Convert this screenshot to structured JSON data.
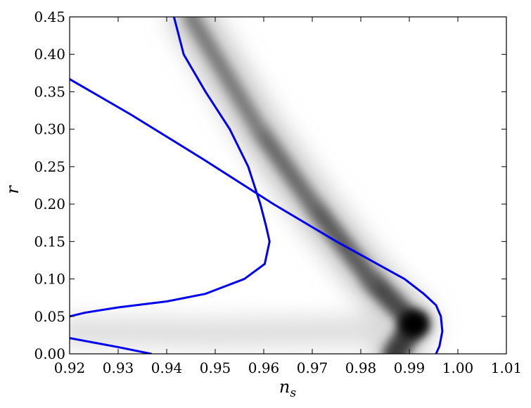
{
  "chart_data": {
    "type": "heatmap",
    "title": "",
    "xlabel": "n",
    "xlabel_subscript": "s",
    "ylabel": "r",
    "xlim": [
      0.92,
      1.01
    ],
    "ylim": [
      0.0,
      0.45
    ],
    "x_ticks": [
      "0.92",
      "0.93",
      "0.94",
      "0.95",
      "0.96",
      "0.97",
      "0.98",
      "0.99",
      "1.00",
      "1.01"
    ],
    "y_ticks": [
      "0.00",
      "0.05",
      "0.10",
      "0.15",
      "0.20",
      "0.25",
      "0.30",
      "0.35",
      "0.40",
      "0.45"
    ],
    "grid": false,
    "colormap": "grayscale, darker = higher density",
    "density_ridge": {
      "r": [
        0.0,
        0.04,
        0.1,
        0.2,
        0.3,
        0.45
      ],
      "ns": [
        0.987,
        0.991,
        0.982,
        0.97,
        0.959,
        0.945
      ]
    },
    "peak": {
      "ns": 0.991,
      "r": 0.04
    },
    "contours": [
      {
        "name": "contour-outer-right",
        "color": "#0000ee",
        "points": [
          [
            0.9955,
            0.0
          ],
          [
            0.9962,
            0.01
          ],
          [
            0.9968,
            0.03
          ],
          [
            0.9965,
            0.05
          ],
          [
            0.9955,
            0.065
          ],
          [
            0.993,
            0.08
          ],
          [
            0.989,
            0.1
          ],
          [
            0.975,
            0.15
          ],
          [
            0.962,
            0.2
          ],
          [
            0.9475,
            0.26
          ],
          [
            0.9325,
            0.32
          ],
          [
            0.9165,
            0.38
          ],
          [
            0.9015,
            0.45
          ]
        ]
      },
      {
        "name": "contour-inner-upper",
        "color": "#0000ee",
        "points": [
          [
            0.92,
            0.05
          ],
          [
            0.9232,
            0.055
          ],
          [
            0.93,
            0.062
          ],
          [
            0.94,
            0.07
          ],
          [
            0.9479,
            0.08
          ],
          [
            0.956,
            0.1
          ],
          [
            0.9602,
            0.12
          ],
          [
            0.9612,
            0.15
          ],
          [
            0.9605,
            0.17
          ],
          [
            0.9593,
            0.2
          ],
          [
            0.9568,
            0.25
          ],
          [
            0.953,
            0.3
          ],
          [
            0.948,
            0.35
          ],
          [
            0.9435,
            0.4
          ],
          [
            0.9415,
            0.45
          ]
        ]
      },
      {
        "name": "contour-lower-left",
        "color": "#0000ee",
        "points": [
          [
            0.92,
            0.021
          ],
          [
            0.93,
            0.009
          ],
          [
            0.9368,
            0.0
          ]
        ]
      }
    ]
  }
}
